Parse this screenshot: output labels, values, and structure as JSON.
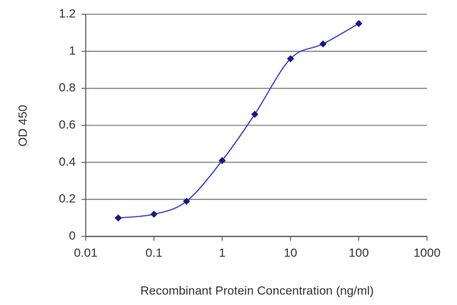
{
  "chart_data": {
    "type": "line",
    "x": [
      0.03,
      0.1,
      0.3,
      1,
      3,
      10,
      30,
      100
    ],
    "values": [
      0.1,
      0.12,
      0.19,
      0.41,
      0.66,
      0.96,
      1.04,
      1.15
    ],
    "color": "#3a3ac8",
    "marker_color": "#1a1a80",
    "xlabel": "Recombinant Protein Concentration (ng/ml)",
    "ylabel": "OD 450",
    "xscale": "log",
    "xlim": [
      0.01,
      1000
    ],
    "xticks": [
      0.01,
      0.1,
      1,
      10,
      100,
      1000
    ],
    "ylim": [
      0,
      1.2
    ],
    "yticks": [
      0,
      0.2,
      0.4,
      0.6,
      0.8,
      1,
      1.2
    ],
    "grid": true
  }
}
